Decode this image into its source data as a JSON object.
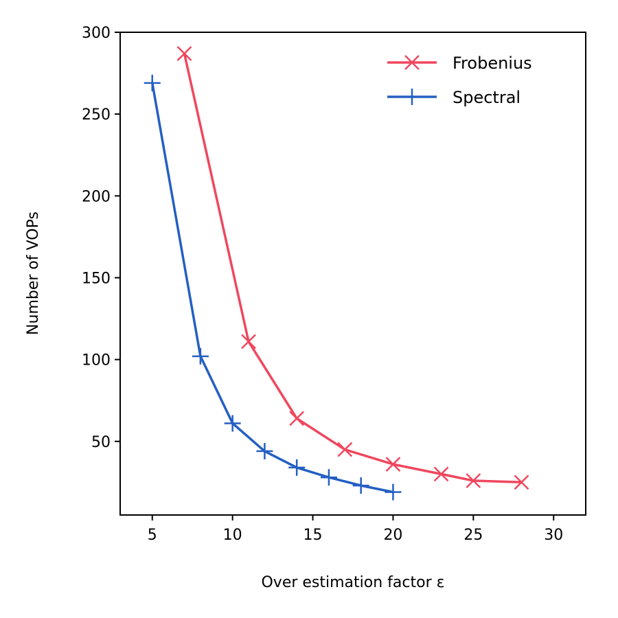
{
  "chart_data": {
    "type": "line",
    "title": "",
    "xlabel": "Over estimation factor ε",
    "ylabel": "Number of VOPs",
    "xlim": [
      3,
      32
    ],
    "ylim": [
      5,
      300
    ],
    "xticks": [
      5,
      10,
      15,
      20,
      25,
      30
    ],
    "yticks": [
      50,
      100,
      150,
      200,
      250,
      300
    ],
    "grid": false,
    "legend_position": "top-right",
    "series": [
      {
        "name": "Frobenius",
        "color": "#f0475e",
        "marker": "x",
        "x": [
          7,
          11,
          14,
          17,
          20,
          23,
          25,
          28
        ],
        "y": [
          287,
          111,
          64,
          45,
          36,
          30,
          26,
          25
        ]
      },
      {
        "name": "Spectral",
        "color": "#245fc2",
        "marker": "+",
        "x": [
          5,
          8,
          10,
          12,
          14,
          16,
          18,
          20
        ],
        "y": [
          269,
          102,
          61,
          44,
          34,
          28,
          23,
          19
        ]
      }
    ]
  }
}
